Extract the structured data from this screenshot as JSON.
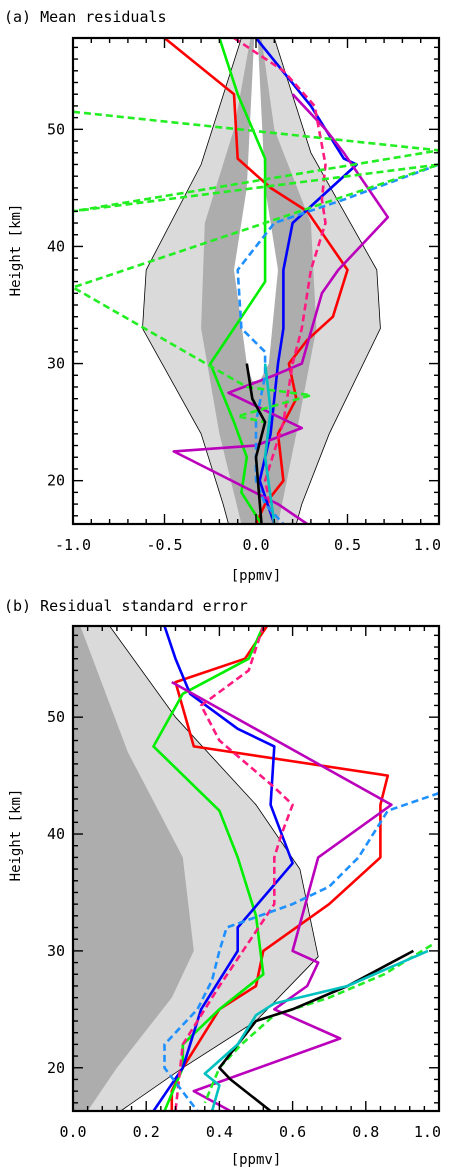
{
  "chart_data": [
    {
      "type": "line",
      "title": "(a) Mean residuals",
      "xlabel": "[ppmv]",
      "ylabel": "Height [km]",
      "xlim": [
        -1.0,
        1.0
      ],
      "ylim": [
        16.3,
        57.8
      ],
      "xticks": [
        -1.0,
        -0.5,
        0.0,
        0.5,
        1.0
      ],
      "xtick_labels": [
        "-1.0",
        "-0.5",
        "0.0",
        "0.5",
        "1.0"
      ],
      "yticks": [
        20,
        30,
        40,
        50
      ],
      "ytick_labels": [
        "20",
        "30",
        "40",
        "50"
      ],
      "grid": false,
      "bands": [
        {
          "color": "#dadada",
          "edge": "#000000",
          "points": [
            [
              -0.08,
              57.8
            ],
            [
              -0.3,
              47
            ],
            [
              -0.6,
              38
            ],
            [
              -0.62,
              33
            ],
            [
              -0.3,
              24
            ],
            [
              -0.18,
              18
            ],
            [
              -0.15,
              16.3
            ],
            [
              0.22,
              16.3
            ],
            [
              0.25,
              18
            ],
            [
              0.4,
              24
            ],
            [
              0.68,
              33
            ],
            [
              0.66,
              38
            ],
            [
              0.3,
              48
            ],
            [
              0.1,
              57.8
            ]
          ]
        },
        {
          "color": "#adadad",
          "edge": "none",
          "points": [
            [
              -0.03,
              57.8
            ],
            [
              -0.12,
              50
            ],
            [
              -0.28,
              42
            ],
            [
              -0.3,
              33
            ],
            [
              -0.2,
              24
            ],
            [
              -0.08,
              16.3
            ],
            [
              0.12,
              16.3
            ],
            [
              0.22,
              24
            ],
            [
              0.33,
              33
            ],
            [
              0.3,
              42
            ],
            [
              0.1,
              50
            ],
            [
              0.03,
              57.8
            ]
          ]
        },
        {
          "color": "#ffffff",
          "edge": "none",
          "points": [
            [
              -0.01,
              57.8
            ],
            [
              -0.05,
              45
            ],
            [
              -0.12,
              38
            ],
            [
              -0.05,
              30
            ],
            [
              -0.02,
              28.5
            ],
            [
              0.02,
              28.5
            ],
            [
              0.07,
              30
            ],
            [
              0.12,
              38
            ],
            [
              0.05,
              45
            ],
            [
              0.01,
              57.8
            ]
          ]
        }
      ],
      "series": [
        {
          "color": "#ff0000",
          "dash": false,
          "x": [
            -0.5,
            -0.12,
            -0.1,
            0.08,
            0.28,
            0.5,
            0.42,
            0.28,
            0.18,
            0.22,
            0.12,
            0.15,
            0.05,
            0.0
          ],
          "y": [
            57.8,
            53,
            47.5,
            45,
            43,
            38,
            34,
            32,
            30,
            27,
            24,
            20,
            18,
            16.3
          ]
        },
        {
          "color": "#00ee00",
          "dash": false,
          "x": [
            -0.2,
            -0.1,
            0.05,
            0.05,
            0.05,
            0.05,
            -0.12,
            -0.25,
            -0.12,
            -0.05,
            -0.08,
            0.03
          ],
          "y": [
            57.8,
            53,
            47.5,
            44,
            40,
            37,
            33,
            30,
            25,
            22,
            19,
            16.3
          ]
        },
        {
          "color": "#0000ff",
          "dash": false,
          "x": [
            0.0,
            0.3,
            0.48,
            0.55,
            0.2,
            0.15,
            0.15,
            0.12,
            0.08,
            0.02,
            0.1
          ],
          "y": [
            57.8,
            52,
            47.5,
            47,
            42,
            38,
            33,
            30,
            24,
            20,
            16.3
          ]
        },
        {
          "color": "#bb00bb",
          "dash": false,
          "x": [
            0.2,
            0.38,
            0.48,
            0.72,
            0.45,
            0.36,
            0.25,
            0.1,
            -0.15,
            0.25,
            0.0,
            -0.45,
            0.12,
            0.28
          ],
          "y": [
            53,
            50,
            48,
            42.5,
            38,
            36,
            30,
            29,
            27.5,
            24.5,
            23,
            22.5,
            18,
            16.3
          ]
        },
        {
          "color": "#ff1a80",
          "dash": true,
          "x": [
            -0.12,
            0.15,
            0.32,
            0.38,
            0.36,
            0.38,
            0.3,
            0.25,
            0.2,
            0.15,
            0.05,
            0.1
          ],
          "y": [
            57.8,
            55,
            52,
            47,
            44,
            42,
            38,
            33,
            30,
            25,
            20,
            16.3
          ]
        },
        {
          "color": "#1e90ff",
          "dash": true,
          "x": [
            1.0,
            0.48,
            0.1,
            -0.1,
            -0.08,
            0.05,
            0.05,
            0.0,
            0.0,
            0.05,
            0.15
          ],
          "y": [
            47,
            44,
            42,
            38,
            33,
            31,
            29,
            25,
            20,
            18,
            16.3
          ]
        },
        {
          "color": "#22ee22",
          "dash": true,
          "x": [
            -1.0,
            1.0,
            -1.0,
            1.0,
            -1.0,
            -0.05,
            0.3,
            -0.1,
            0.05
          ],
          "y": [
            51.5,
            48.2,
            43,
            47,
            36.5,
            28,
            27.3,
            25.5,
            25
          ]
        },
        {
          "color": "#000000",
          "dash": false,
          "x": [
            -0.05,
            -0.02,
            0.05,
            0.0,
            0.03
          ],
          "y": [
            30,
            27,
            25,
            22,
            16.3
          ]
        },
        {
          "color": "#00c0c0",
          "dash": false,
          "x": [
            0.05,
            0.08,
            0.05,
            0.1
          ],
          "y": [
            30,
            26,
            22,
            16.3
          ]
        }
      ]
    },
    {
      "type": "line",
      "title": "(b) Residual standard error",
      "xlabel": "[ppmv]",
      "ylabel": "Height [km]",
      "xlim": [
        0.0,
        1.0
      ],
      "ylim": [
        16.3,
        57.8
      ],
      "xticks": [
        0.0,
        0.2,
        0.4,
        0.6,
        0.8,
        1.0
      ],
      "xtick_labels": [
        "0.0",
        "0.2",
        "0.4",
        "0.6",
        "0.8",
        "1.0"
      ],
      "yticks": [
        20,
        30,
        40,
        50
      ],
      "ytick_labels": [
        "20",
        "30",
        "40",
        "50"
      ],
      "grid": false,
      "bands": [
        {
          "color": "#dadada",
          "edge": "#000000",
          "points": [
            [
              0.0,
              57.8
            ],
            [
              0.0,
              16.3
            ],
            [
              0.13,
              16.3
            ],
            [
              0.3,
              20
            ],
            [
              0.5,
              24
            ],
            [
              0.67,
              29.5
            ],
            [
              0.62,
              37
            ],
            [
              0.5,
              42.5
            ],
            [
              0.28,
              50
            ],
            [
              0.1,
              57.8
            ]
          ]
        },
        {
          "color": "#adadad",
          "edge": "none",
          "points": [
            [
              0.0,
              57.8
            ],
            [
              0.0,
              16.3
            ],
            [
              0.04,
              16.3
            ],
            [
              0.12,
              20
            ],
            [
              0.27,
              26
            ],
            [
              0.33,
              30
            ],
            [
              0.3,
              38
            ],
            [
              0.15,
              47
            ],
            [
              0.02,
              57.8
            ]
          ]
        }
      ],
      "series": [
        {
          "color": "#ff0000",
          "dash": false,
          "x": [
            0.53,
            0.47,
            0.28,
            0.33,
            0.86,
            0.84,
            0.84,
            0.7,
            0.52,
            0.5,
            0.4,
            0.3,
            0.27,
            0.27
          ],
          "y": [
            57.8,
            55,
            53,
            47.5,
            45,
            42.5,
            38,
            34,
            30,
            27,
            25,
            20,
            18,
            16.3
          ]
        },
        {
          "color": "#00ee00",
          "dash": false,
          "x": [
            0.52,
            0.48,
            0.3,
            0.22,
            0.4,
            0.45,
            0.5,
            0.52,
            0.4,
            0.3,
            0.3,
            0.25
          ],
          "y": [
            57.8,
            55,
            52,
            47.5,
            42,
            38,
            33,
            28,
            25,
            22,
            20,
            16.3
          ]
        },
        {
          "color": "#0000ff",
          "dash": false,
          "x": [
            0.25,
            0.28,
            0.32,
            0.45,
            0.55,
            0.54,
            0.6,
            0.45,
            0.45,
            0.35,
            0.3,
            0.22
          ],
          "y": [
            57.8,
            55,
            52,
            49,
            47.5,
            42.5,
            37.5,
            32,
            30,
            25,
            20,
            16.3
          ]
        },
        {
          "color": "#bb00bb",
          "dash": false,
          "x": [
            0.27,
            0.87,
            0.67,
            0.6,
            0.67,
            0.64,
            0.55,
            0.73,
            0.33,
            0.43
          ],
          "y": [
            53,
            42.5,
            38,
            30,
            29,
            27,
            25,
            22.5,
            18,
            16.3
          ]
        },
        {
          "color": "#ff1a80",
          "dash": true,
          "x": [
            0.52,
            0.48,
            0.35,
            0.4,
            0.55,
            0.6,
            0.57,
            0.55,
            0.55,
            0.4,
            0.3,
            0.28
          ],
          "y": [
            57.8,
            54,
            51,
            48,
            44,
            42.5,
            40,
            38,
            34,
            27,
            22,
            16.3
          ]
        },
        {
          "color": "#1e90ff",
          "dash": true,
          "x": [
            1.0,
            0.86,
            0.78,
            0.7,
            0.6,
            0.42,
            0.4,
            0.38,
            0.34,
            0.25,
            0.25,
            0.34
          ],
          "y": [
            43.5,
            42,
            38,
            35.5,
            34,
            32,
            30,
            27.5,
            25,
            22,
            20,
            16.3
          ]
        },
        {
          "color": "#22ee22",
          "dash": true,
          "x": [
            0.98,
            0.85,
            0.7,
            0.55,
            0.46,
            0.4,
            0.36
          ],
          "y": [
            30.5,
            28,
            26,
            24.5,
            22,
            20,
            17
          ]
        },
        {
          "color": "#000000",
          "dash": false,
          "x": [
            0.93,
            0.75,
            0.6,
            0.5,
            0.45,
            0.4,
            0.43,
            0.54
          ],
          "y": [
            30,
            27,
            25,
            24,
            22,
            20,
            19,
            16.3
          ]
        },
        {
          "color": "#00c0c0",
          "dash": false,
          "x": [
            0.97,
            0.75,
            0.55,
            0.5,
            0.45,
            0.36,
            0.4,
            0.38
          ],
          "y": [
            30,
            27,
            25.5,
            24.5,
            22,
            19.5,
            18.5,
            16.3
          ]
        }
      ]
    }
  ]
}
